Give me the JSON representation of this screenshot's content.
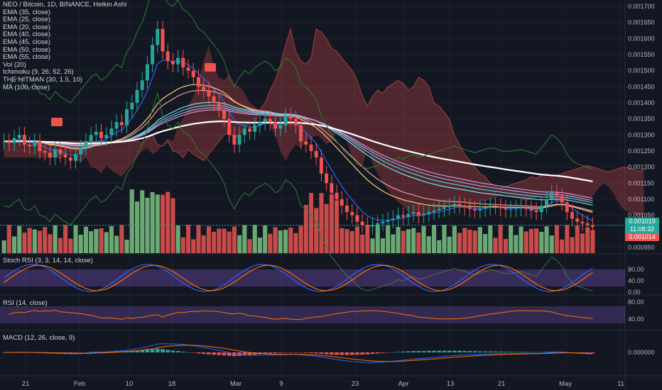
{
  "header": {
    "symbol_line": "NEO / Bitcoin, 1D, BINANCE, Heikin Ashi",
    "indicators": [
      "EMA (35, close)",
      "EMA (25, close)",
      "EMA (20, close)",
      "EMA (40, close)",
      "EMA (45, close)",
      "EMA (50, close)",
      "EMA (55, close)",
      "Vol (20)",
      "Ichimoku (9, 26, 52, 26)",
      "THE HITMAN (30, 1.5, 10)",
      "MA (100, close)"
    ]
  },
  "price_axis": {
    "ticks": [
      "0.001700",
      "0.001650",
      "0.001600",
      "0.001550",
      "0.001500",
      "0.001450",
      "0.001400",
      "0.001350",
      "0.001300",
      "0.001250",
      "0.001200",
      "0.001150",
      "0.001100",
      "0.001050",
      "0.000950"
    ],
    "last_price": "0.001019",
    "countdown": "11:08:32",
    "other_price": "0.001014"
  },
  "panes": {
    "stoch": {
      "label": "Stoch RSI (3, 3, 14, 14, close)",
      "ticks": [
        "80.00",
        "40.00",
        "0.00"
      ]
    },
    "rsi": {
      "label": "RSI (14, close)",
      "ticks": [
        "80.00",
        "40.00"
      ]
    },
    "macd": {
      "label": "MACD (12, 26, close, 9)",
      "ticks": [
        "0.000000"
      ]
    }
  },
  "time_axis": {
    "labels": [
      "21",
      "Feb",
      "10",
      "18",
      "Mar",
      "9",
      "23",
      "Apr",
      "13",
      "21",
      "May",
      "11"
    ]
  },
  "colors": {
    "bg": "#131722",
    "up": "#26a69a",
    "down": "#ef5350",
    "vol_up": "#6aa973",
    "vol_down": "#c84a4a",
    "ema": [
      "#2962ff",
      "#ef9a9a",
      "#ffcc80",
      "#80deea",
      "#4dd0e1",
      "#b39ddb",
      "#ce93d8"
    ],
    "ma100": "#ffffff",
    "stoch_k": "#2962ff",
    "stoch_d": "#ff6d00",
    "rsi": "#ff6d00",
    "macd": "#2962ff",
    "signal": "#ff6d00"
  },
  "chart_data": {
    "type": "candlestick",
    "title": "NEO / Bitcoin, 1D, BINANCE, Heikin Ashi",
    "ylim": [
      0.00093,
      0.00172
    ],
    "x_labels": [
      "21",
      "Feb",
      "10",
      "18",
      "Mar",
      "9",
      "23",
      "Apr",
      "13",
      "21",
      "May",
      "11"
    ],
    "close": [
      0.00128,
      0.001275,
      0.00129,
      0.0013,
      0.00127,
      0.001265,
      0.00128,
      0.00125,
      0.001245,
      0.00123,
      0.001255,
      0.00124,
      0.00123,
      0.00122,
      0.00124,
      0.00126,
      0.00128,
      0.0013,
      0.00131,
      0.00129,
      0.0013,
      0.00132,
      0.00134,
      0.00133,
      0.00138,
      0.0014,
      0.00144,
      0.00147,
      0.00152,
      0.00158,
      0.00163,
      0.00156,
      0.00153,
      0.00152,
      0.00154,
      0.00151,
      0.0015,
      0.00148,
      0.00145,
      0.00144,
      0.00142,
      0.0014,
      0.00138,
      0.00135,
      0.0013,
      0.00127,
      0.0013,
      0.00132,
      0.00131,
      0.00133,
      0.00134,
      0.00135,
      0.00134,
      0.00132,
      0.00133,
      0.00136,
      0.00135,
      0.00133,
      0.00128,
      0.00127,
      0.00125,
      0.00123,
      0.00118,
      0.00115,
      0.00112,
      0.0011,
      0.00108,
      0.00106,
      0.00105,
      0.00103,
      0.00102,
      0.001015,
      0.00102,
      0.001025,
      0.00103,
      0.001035,
      0.00104,
      0.00105,
      0.001045,
      0.001055,
      0.00106,
      0.00105,
      0.001055,
      0.00106,
      0.001065,
      0.00107,
      0.001075,
      0.00108,
      0.001085,
      0.00108,
      0.001075,
      0.00107,
      0.001065,
      0.00107,
      0.001075,
      0.00108,
      0.001078,
      0.001072,
      0.001068,
      0.00107,
      0.001072,
      0.001075,
      0.00107,
      0.001065,
      0.00106,
      0.00108,
      0.0011,
      0.00112,
      0.00111,
      0.00109,
      0.00106,
      0.00104,
      0.00103,
      0.001025,
      0.001019,
      0.001014
    ]
  }
}
